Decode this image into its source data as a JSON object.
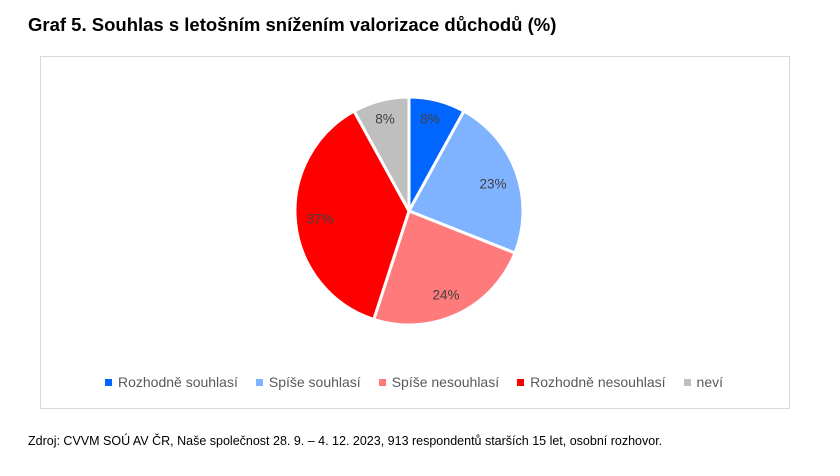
{
  "title": "Graf 5. Souhlas s letošním snížením valorizace důchodů (%)",
  "source": "Zdroj: CVVM SOÚ AV ČR, Naše společnost 28. 9. – 4. 12. 2023, 913 respondentů starších 15 let, osobní rozhovor.",
  "chart_data": {
    "type": "pie",
    "title": "",
    "legend_position": "bottom",
    "start_angle": "top, clockwise",
    "slices": [
      {
        "label": "Rozhodně souhlasí",
        "value": 8,
        "display": "8%",
        "color": "#0066ff"
      },
      {
        "label": "Spíše souhlasí",
        "value": 23,
        "display": "23%",
        "color": "#7fb2ff"
      },
      {
        "label": "Spíše nesouhlasí",
        "value": 24,
        "display": "24%",
        "color": "#ff7b7b"
      },
      {
        "label": "Rozhodně nesouhlasí",
        "value": 37,
        "display": "37%",
        "color": "#ff0000"
      },
      {
        "label": "neví",
        "value": 8,
        "display": "8%",
        "color": "#bfbfbf"
      }
    ]
  }
}
